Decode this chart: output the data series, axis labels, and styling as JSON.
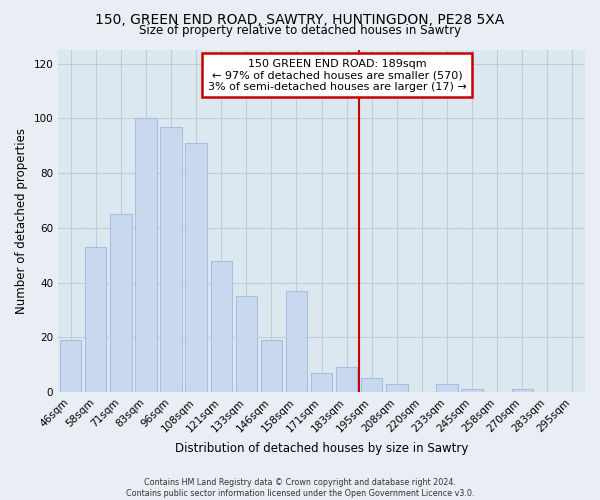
{
  "title": "150, GREEN END ROAD, SAWTRY, HUNTINGDON, PE28 5XA",
  "subtitle": "Size of property relative to detached houses in Sawtry",
  "xlabel": "Distribution of detached houses by size in Sawtry",
  "ylabel": "Number of detached properties",
  "bar_labels": [
    "46sqm",
    "58sqm",
    "71sqm",
    "83sqm",
    "96sqm",
    "108sqm",
    "121sqm",
    "133sqm",
    "146sqm",
    "158sqm",
    "171sqm",
    "183sqm",
    "195sqm",
    "208sqm",
    "220sqm",
    "233sqm",
    "245sqm",
    "258sqm",
    "270sqm",
    "283sqm",
    "295sqm"
  ],
  "bar_values": [
    19,
    53,
    65,
    100,
    97,
    91,
    48,
    35,
    19,
    37,
    7,
    9,
    5,
    3,
    0,
    3,
    1,
    0,
    1,
    0,
    0
  ],
  "bar_color": "#c8d8ef",
  "bar_edgecolor": "#a8c0de",
  "vline_x_index": 12.0,
  "vline_color": "#cc0000",
  "annotation_title": "150 GREEN END ROAD: 189sqm",
  "annotation_line1": "← 97% of detached houses are smaller (570)",
  "annotation_line2": "3% of semi-detached houses are larger (17) →",
  "footer1": "Contains HM Land Registry data © Crown copyright and database right 2024.",
  "footer2": "Contains public sector information licensed under the Open Government Licence v3.0.",
  "ylim": [
    0,
    125
  ],
  "yticks": [
    0,
    20,
    40,
    60,
    80,
    100,
    120
  ],
  "fig_background": "#e8eef4",
  "plot_background": "#dce8f0",
  "grid_color": "#c0ccd8"
}
